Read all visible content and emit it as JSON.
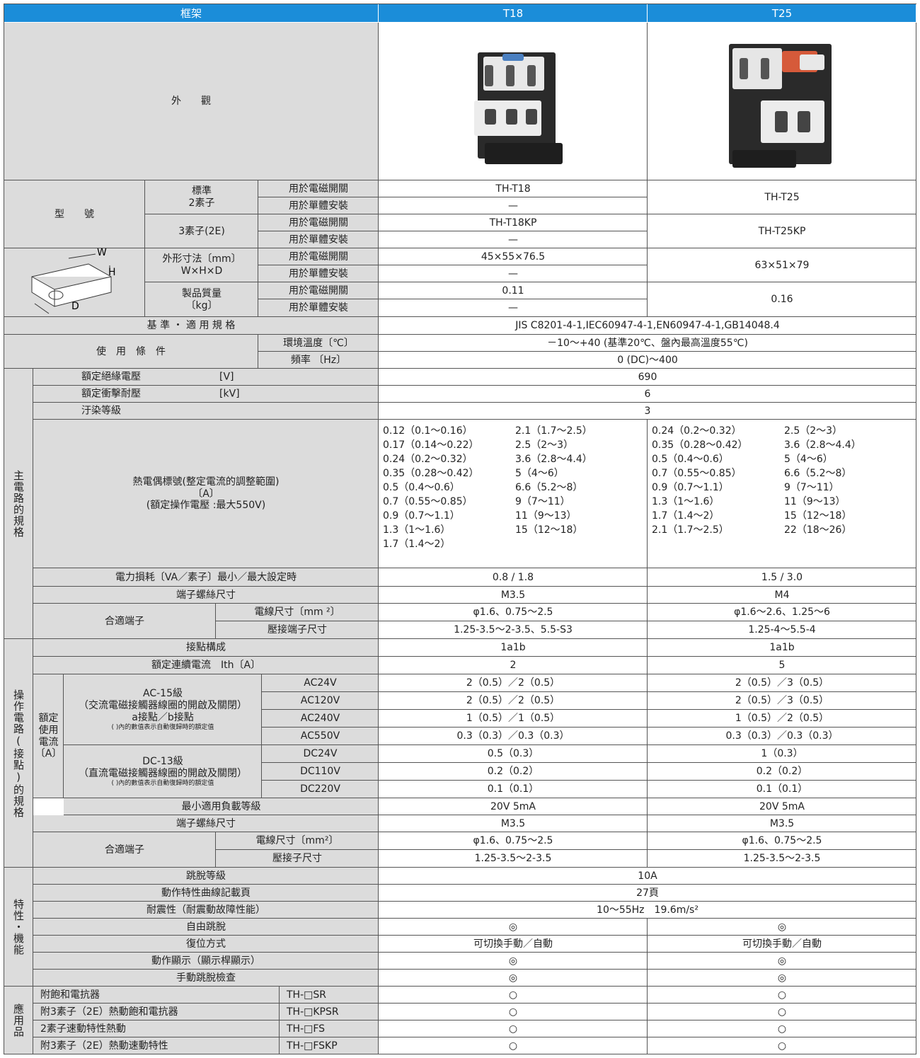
{
  "header": {
    "frame": "框架",
    "t18": "T18",
    "t25": "T25"
  },
  "appearance": "外　　觀",
  "model": {
    "label": "型　　號",
    "standard": "標準",
    "two_element": "2素子",
    "three_element": "3素子(2E)",
    "for_contactor": "用於電磁開關",
    "for_standalone": "用於單體安裝",
    "t18": [
      "TH-T18",
      "—",
      "TH-T18KP",
      "—"
    ],
    "t25": [
      "TH-T25",
      "TH-T25KP"
    ]
  },
  "dims": {
    "w": "W",
    "h": "H",
    "d": "D",
    "size_label": "外形寸法〔mm〕",
    "size_sub": "W×H×D",
    "mass_label": "製品質量",
    "mass_unit": "〔kg〕",
    "t18": [
      "45×55×76.5",
      "—",
      "0.11",
      "—"
    ],
    "t25": [
      "63×51×79",
      "0.16"
    ]
  },
  "standard": {
    "label": "基 準 ・ 適 用 規 格",
    "value": "JIS C8201-4-1,IEC60947-4-1,EN60947-4-1,GB14048.4"
  },
  "env": {
    "label": "使　用　條　件",
    "temp_label": "環境溫度〔℃〕",
    "temp": "－10～+40 (基準20℃、盤內最高溫度55℃)",
    "freq_label": "頻率 〔Hz〕",
    "freq": "0 (DC)～400"
  },
  "main": {
    "group": "主電路的規格",
    "insulation": {
      "label": "額定絕緣電壓",
      "unit": "[V]",
      "value": "690"
    },
    "impulse": {
      "label": "額定衝擊耐壓",
      "unit": "[kV]",
      "value": "6"
    },
    "pollution": {
      "label": "汙染等級",
      "value": "3"
    },
    "thermal": {
      "lines": [
        "熱電偶標號(整定電流的調整範圍)",
        "〔A〕",
        "(額定操作電壓 :最大550V)"
      ],
      "t18": [
        [
          "0.12（0.1～0.16）",
          "0.17（0.14～0.22）",
          "0.24（0.2～0.32）",
          "0.35（0.28～0.42）",
          "0.5（0.4～0.6）",
          "0.7（0.55～0.85）",
          "0.9（0.7～1.1）",
          "1.3（1～1.6）",
          "1.7（1.4～2）"
        ],
        [
          "2.1（1.7～2.5）",
          "2.5（2～3）",
          "3.6（2.8～4.4）",
          "5（4～6）",
          "6.6（5.2～8）",
          "9（7～11）",
          "11（9～13）",
          "15（12～18）"
        ]
      ],
      "t25": [
        [
          "0.24（0.2～0.32）",
          "0.35（0.28～0.42）",
          "0.5（0.4～0.6）",
          "0.7（0.55～0.85）",
          "0.9（0.7～1.1）",
          "1.3（1～1.6）",
          "1.7（1.4～2）",
          "2.1（1.7～2.5）"
        ],
        [
          "2.5（2～3）",
          "3.6（2.8～4.4）",
          "5（4～6）",
          "6.6（5.2～8）",
          "9（7～11）",
          "11（9～13）",
          "15（12～18）",
          "22（18～26）"
        ]
      ]
    },
    "loss": {
      "label": "電力損耗〔VA／素子〕最小／最大設定時",
      "t18": "0.8 / 1.8",
      "t25": "1.5 / 3.0"
    },
    "screw": {
      "label": "端子螺絲尺寸",
      "t18": "M3.5",
      "t25": "M4"
    },
    "terminal": {
      "label": "合適端子",
      "wire_label": "電線尺寸〔mm ²〕",
      "crimp_label": "壓接端子尺寸",
      "t18": [
        "φ1.6、0.75～2.5",
        "1.25-3.5～2-3.5、5.5-S3"
      ],
      "t25": [
        "φ1.6～2.6、1.25～6",
        "1.25-4～5.5-4"
      ]
    }
  },
  "operation": {
    "group": "操作電路(接點)的規格",
    "contact": {
      "label": "接點構成",
      "t18": "1a1b",
      "t25": "1a1b"
    },
    "continuous": {
      "label": "額定連續電流　Ith〔A〕",
      "t18": "2",
      "t25": "5"
    },
    "rated": [
      "額定",
      "使用",
      "電流",
      "〔A〕"
    ],
    "ac": {
      "class": "AC-15級",
      "desc": "（交流電磁接觸器線圈的開啟及關閉）",
      "contacts": "a接點／b接點",
      "note": "( )內的數值表示自動復歸時的額定值",
      "voltages": [
        "AC24V",
        "AC120V",
        "AC240V",
        "AC550V"
      ],
      "t18": [
        "2（0.5）／2（0.5）",
        "2（0.5）／2（0.5）",
        "1（0.5）／1（0.5）",
        "0.3（0.3）／0.3（0.3）"
      ],
      "t25": [
        "2（0.5）／3（0.5）",
        "2（0.5）／3（0.5）",
        "1（0.5）／2（0.5）",
        "0.3（0.3）／0.3（0.3）"
      ]
    },
    "dc": {
      "class": "DC-13級",
      "desc": "（直流電磁接觸器線圈的開啟及關閉）",
      "note": "( )內的數值表示自動復歸時的額定值",
      "voltages": [
        "DC24V",
        "DC110V",
        "DC220V"
      ],
      "t18": [
        "0.5（0.3）",
        "0.2（0.2）",
        "0.1（0.1）"
      ],
      "t25": [
        "1（0.3）",
        "0.2（0.2）",
        "0.1（0.1）"
      ]
    },
    "min_load": {
      "label": "最小適用負載等級",
      "t18": "20V 5mA",
      "t25": "20V 5mA"
    },
    "screw": {
      "label": "端子螺絲尺寸",
      "t18": "M3.5",
      "t25": "M3.5"
    },
    "terminal": {
      "label": "合適端子",
      "wire_label": "電線尺寸〔mm²〕",
      "crimp_label": "壓接子尺寸",
      "t18": [
        "φ1.6、0.75～2.5",
        "1.25-3.5～2-3.5"
      ],
      "t25": [
        "φ1.6、0.75～2.5",
        "1.25-3.5～2-3.5"
      ]
    }
  },
  "characteristics": {
    "group": "特性・機能",
    "trip": {
      "label": "跳脫等級",
      "value": "10A"
    },
    "curve": {
      "label": "動作特性曲線記載頁",
      "value": "27頁"
    },
    "seismic": {
      "label": "耐震性（耐震動故障性能）",
      "value": "10～55Hz　19.6m/s²"
    },
    "free": {
      "label": "自由跳脫",
      "t18": "◎",
      "t25": "◎"
    },
    "reset": {
      "label": "復位方式",
      "t18": "可切換手動／自動",
      "t25": "可切換手動／自動"
    },
    "indicator": {
      "label": "動作顯示（顯示桿顯示）",
      "t18": "◎",
      "t25": "◎"
    },
    "manual": {
      "label": "手動跳脫檢查",
      "t18": "◎",
      "t25": "◎"
    }
  },
  "applications": {
    "group": "應用品",
    "items": [
      {
        "name": "附飽和電抗器",
        "code": "TH-□SR",
        "t18": "○",
        "t25": "○"
      },
      {
        "name": "附3素子（2E）熱動飽和電抗器",
        "code": "TH-□KPSR",
        "t18": "○",
        "t25": "○"
      },
      {
        "name": "2素子速動特性熱動",
        "code": "TH-□FS",
        "t18": "○",
        "t25": "○"
      },
      {
        "name": "附3素子（2E）熱動速動特性",
        "code": "TH-□FSKP",
        "t18": "○",
        "t25": "○"
      }
    ]
  }
}
